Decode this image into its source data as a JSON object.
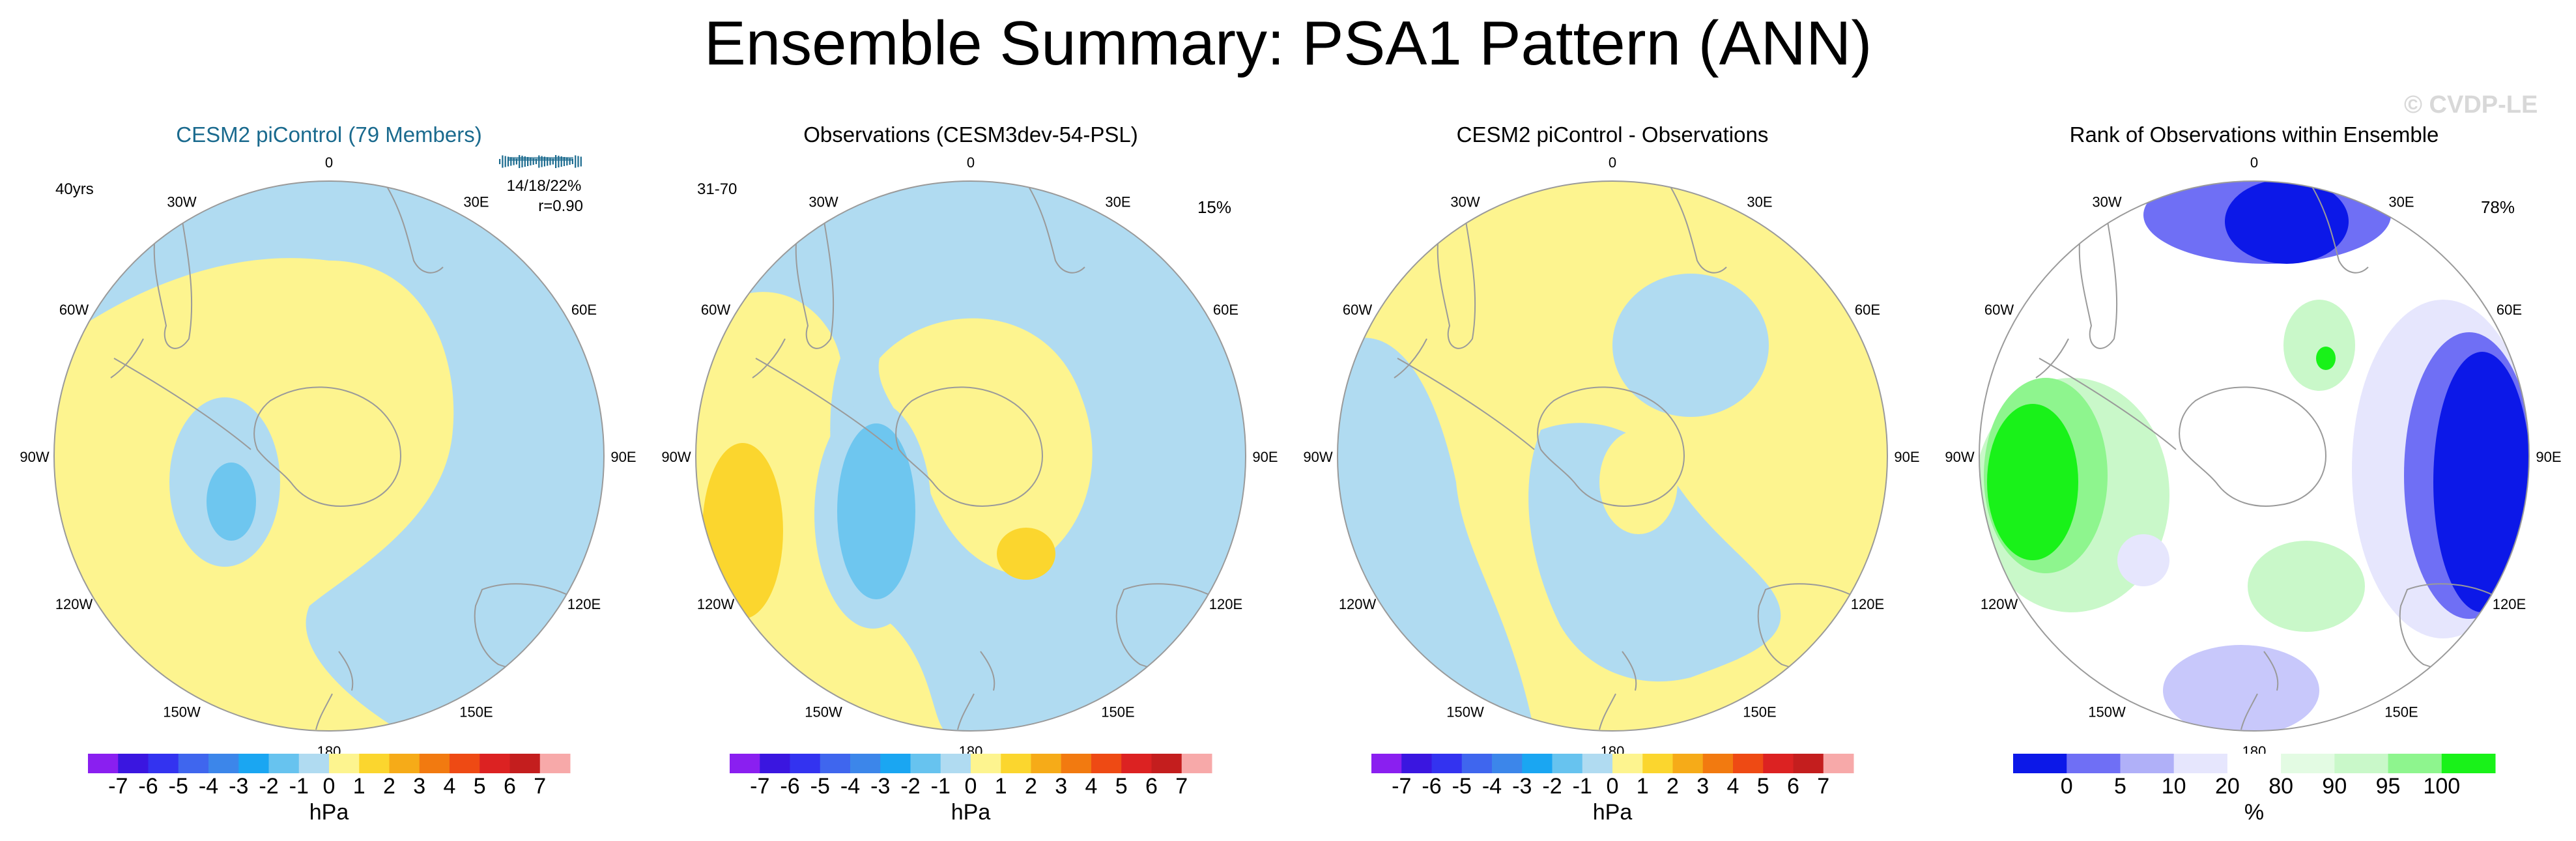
{
  "title": "Ensemble Summary: PSA1 Pattern (ANN)",
  "watermark": "© CVDP-LE",
  "colors": {
    "yellow_fill": "#fdf48f",
    "gold_fill": "#fbd62e",
    "light_blue_fill": "#b0dbf1",
    "mid_blue_fill": "#6ec6ef",
    "title_teal": "#1a6a8e",
    "grey_land": "#9a9a9a",
    "green_bright": "#19f219",
    "green_mid": "#8ef58e",
    "green_light": "#c9f8c9",
    "blue_dark": "#0c18e8",
    "blue_mid": "#6f6ff5",
    "blue_light": "#c8c8fb",
    "blue_pale": "#e6e6fd"
  },
  "longitude_labels": [
    "0",
    "30E",
    "60E",
    "90E",
    "120E",
    "150E",
    "180",
    "150W",
    "120W",
    "90W",
    "60W",
    "30W"
  ],
  "panels": [
    {
      "title": "CESM2 piControl (79 Members)",
      "title_color": "#1a6a8e",
      "left_annotation": "40yrs",
      "right_annotation": "",
      "stats_line1": "14/18/22%",
      "stats_line2": "r=0.90",
      "colorbar_kind": "diverging",
      "colorbar_ticks": [
        "-7",
        "-6",
        "-5",
        "-4",
        "-3",
        "-2",
        "-1",
        "0",
        "1",
        "2",
        "3",
        "4",
        "5",
        "6",
        "7"
      ],
      "colorbar_units": "hPa"
    },
    {
      "title": "Observations (CESM3dev-54-PSL)",
      "title_color": "#000000",
      "left_annotation": "31-70",
      "right_annotation": "15%",
      "colorbar_kind": "diverging",
      "colorbar_ticks": [
        "-7",
        "-6",
        "-5",
        "-4",
        "-3",
        "-2",
        "-1",
        "0",
        "1",
        "2",
        "3",
        "4",
        "5",
        "6",
        "7"
      ],
      "colorbar_units": "hPa"
    },
    {
      "title": "CESM2 piControl - Observations",
      "title_color": "#000000",
      "left_annotation": "",
      "right_annotation": "",
      "colorbar_kind": "diverging",
      "colorbar_ticks": [
        "-7",
        "-6",
        "-5",
        "-4",
        "-3",
        "-2",
        "-1",
        "0",
        "1",
        "2",
        "3",
        "4",
        "5",
        "6",
        "7"
      ],
      "colorbar_units": "hPa"
    },
    {
      "title": "Rank of Observations within Ensemble",
      "title_color": "#000000",
      "left_annotation": "",
      "right_annotation": "78%",
      "colorbar_kind": "rank",
      "colorbar_ticks": [
        "0",
        "5",
        "10",
        "20",
        "80",
        "90",
        "95",
        "100"
      ],
      "colorbar_units": "%"
    }
  ],
  "chart_data": {
    "type": "heatmap",
    "title": "Ensemble Summary: PSA1 Pattern (ANN)",
    "projection": "south polar stereographic",
    "panels": [
      "CESM2 piControl (79 Members)",
      "Observations (CESM3dev-54-PSL)",
      "CESM2 piControl - Observations",
      "Rank of Observations within Ensemble"
    ],
    "diverging_scale": {
      "units": "hPa",
      "levels": [
        -7,
        -6,
        -5,
        -4,
        -3,
        -2,
        -1,
        0,
        1,
        2,
        3,
        4,
        5,
        6,
        7
      ],
      "colors": [
        "#8a1ff0",
        "#3a16e0",
        "#3333f0",
        "#3f66ee",
        "#3c86ea",
        "#1aa6f2",
        "#67c3ef",
        "#b0dbf1",
        "#fdf48f",
        "#fbd62e",
        "#f6ab18",
        "#f27a10",
        "#ee4a14",
        "#dc2222",
        "#c41e1e",
        "#f7a9a9"
      ]
    },
    "rank_scale": {
      "units": "%",
      "levels": [
        0,
        5,
        10,
        20,
        80,
        90,
        95,
        100
      ],
      "colors": [
        "#0c18e8",
        "#6f6ff5",
        "#b0b0f8",
        "#e6e6fd",
        "#ffffff",
        "#e3fbe3",
        "#c9f8c9",
        "#8ef58e",
        "#19f219"
      ]
    },
    "panel_annotations": {
      "ensemble_years": "40yrs",
      "obs_years": "31-70",
      "obs_variance_explained": "15%",
      "ensemble_variance_explained": "14/18/22%",
      "pattern_correlation": 0.9,
      "rank_percent_within_10_90": "78%"
    }
  }
}
